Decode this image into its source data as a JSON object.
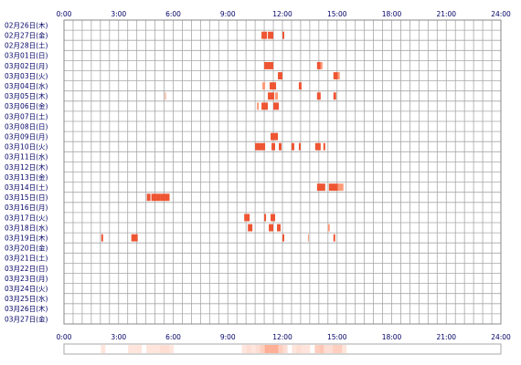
{
  "chart_data": {
    "type": "heatmap",
    "x_ticks": [
      "0:00",
      "3:00",
      "6:00",
      "9:00",
      "12:00",
      "15:00",
      "18:00",
      "21:00",
      "24:00"
    ],
    "x_range_hours": [
      0,
      24
    ],
    "rows": [
      "02月26日(木)",
      "02月27日(金)",
      "02月28日(土)",
      "03月01日(日)",
      "03月02日(月)",
      "03月03日(火)",
      "03月04日(水)",
      "03月05日(木)",
      "03月06日(金)",
      "03月07日(土)",
      "03月08日(日)",
      "03月09日(月)",
      "03月10日(火)",
      "03月11日(水)",
      "03月12日(木)",
      "03月13日(金)",
      "03月14日(土)",
      "03月15日(日)",
      "03月16日(月)",
      "03月17日(火)",
      "03月18日(水)",
      "03月19日(木)",
      "03月20日(金)",
      "03月21日(土)",
      "03月22日(日)",
      "03月23日(月)",
      "03月24日(火)",
      "03月25日(水)",
      "03月26日(木)",
      "03月27日(金)"
    ],
    "grid": true,
    "mark_colors": {
      "strong": "#ee5533",
      "light": "#ff9977"
    },
    "activity": [
      [],
      [
        [
          10.85,
          11.15,
          "s"
        ],
        [
          11.2,
          11.5,
          "s"
        ],
        [
          12.0,
          12.1,
          "s"
        ]
      ],
      [],
      [],
      [
        [
          11.0,
          11.5,
          "s"
        ],
        [
          13.9,
          14.1,
          "s"
        ],
        [
          14.1,
          14.2,
          "l"
        ]
      ],
      [
        [
          11.75,
          12.0,
          "s"
        ],
        [
          14.8,
          15.05,
          "s"
        ],
        [
          15.05,
          15.15,
          "l"
        ]
      ],
      [
        [
          10.9,
          11.05,
          "l"
        ],
        [
          11.3,
          11.65,
          "s"
        ],
        [
          12.9,
          13.05,
          "s"
        ]
      ],
      [
        [
          5.55,
          5.6,
          "l"
        ],
        [
          11.2,
          11.55,
          "s"
        ],
        [
          11.6,
          11.75,
          "l"
        ],
        [
          13.9,
          14.1,
          "s"
        ],
        [
          14.8,
          14.95,
          "s"
        ]
      ],
      [
        [
          10.6,
          10.7,
          "l"
        ],
        [
          10.85,
          11.2,
          "s"
        ],
        [
          11.5,
          11.8,
          "s"
        ]
      ],
      [],
      [],
      [
        [
          11.35,
          11.75,
          "s"
        ]
      ],
      [
        [
          10.5,
          11.05,
          "s"
        ],
        [
          11.4,
          11.6,
          "s"
        ],
        [
          11.8,
          11.95,
          "s"
        ],
        [
          12.5,
          12.65,
          "s"
        ],
        [
          12.9,
          13.0,
          "s"
        ],
        [
          13.8,
          14.1,
          "s"
        ],
        [
          14.25,
          14.35,
          "s"
        ]
      ],
      [],
      [],
      [],
      [
        [
          13.9,
          14.35,
          "s"
        ],
        [
          14.55,
          15.05,
          "s"
        ],
        [
          15.05,
          15.35,
          "l"
        ]
      ],
      [
        [
          4.55,
          4.75,
          "s"
        ],
        [
          4.8,
          5.3,
          "s"
        ],
        [
          5.3,
          5.8,
          "s"
        ]
      ],
      [],
      [
        [
          9.9,
          10.2,
          "s"
        ],
        [
          11.0,
          11.1,
          "s"
        ],
        [
          11.35,
          11.6,
          "s"
        ]
      ],
      [
        [
          10.1,
          10.35,
          "s"
        ],
        [
          11.25,
          11.5,
          "s"
        ],
        [
          11.7,
          11.9,
          "s"
        ],
        [
          14.5,
          14.6,
          "l"
        ]
      ],
      [
        [
          2.05,
          2.15,
          "s"
        ],
        [
          3.7,
          4.05,
          "s"
        ],
        [
          12.0,
          12.1,
          "s"
        ],
        [
          13.4,
          13.45,
          "l"
        ],
        [
          14.8,
          14.9,
          "s"
        ]
      ],
      [],
      [],
      [],
      [],
      [],
      [],
      [],
      []
    ]
  }
}
